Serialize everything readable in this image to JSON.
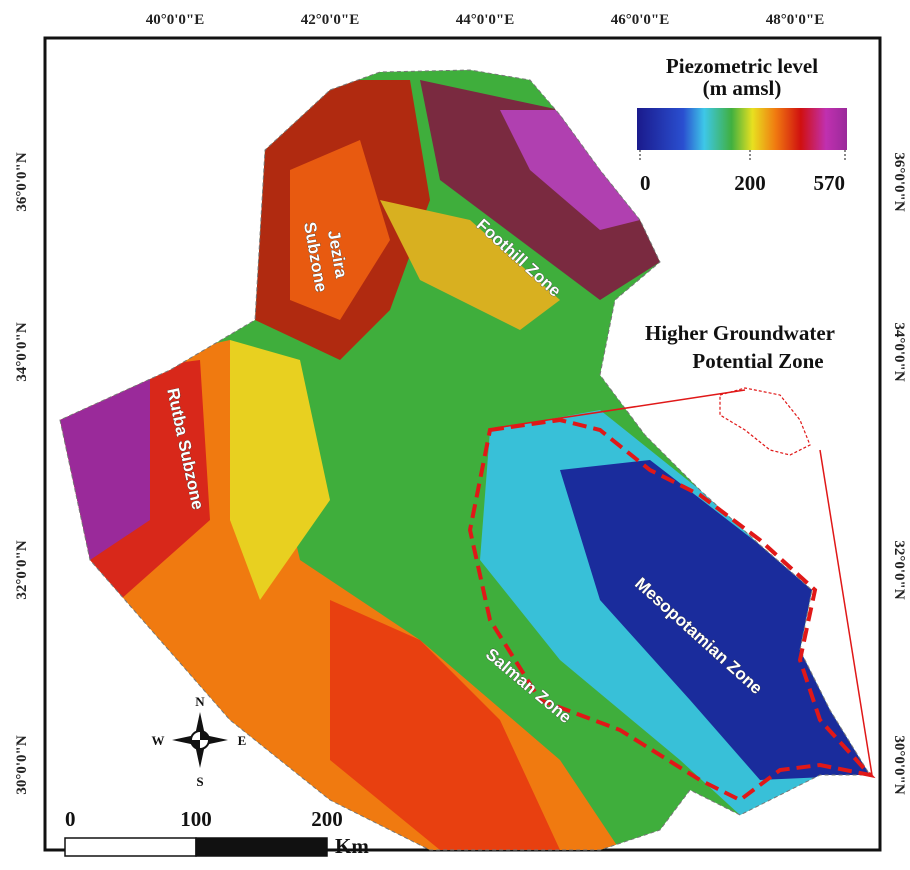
{
  "map": {
    "longitude_labels": [
      "40°0'0\"E",
      "42°0'0\"E",
      "44°0'0\"E",
      "46°0'0\"E",
      "48°0'0\"E"
    ],
    "latitude_labels": [
      "36°0'0\"N",
      "34°0'0\"N",
      "32°0'0\"N",
      "30°0'0\"N"
    ],
    "legend": {
      "title": "Piezometric level",
      "subtitle": "(m amsl)",
      "ticks": [
        0,
        200,
        570
      ]
    },
    "zones": {
      "jezira": [
        "Jezira",
        "Subzone"
      ],
      "foothill": "Foothill Zone",
      "rutba": "Rutba Subzone",
      "salman": "Salman Zone",
      "mesopotamian": "Mesopotamian Zone"
    },
    "annotation": [
      "Higher Groundwater",
      "Potential Zone"
    ],
    "compass": {
      "north": "N",
      "south": "S",
      "east": "E",
      "west": "W"
    },
    "scale_bar": {
      "ticks": [
        0,
        100,
        200
      ],
      "unit": "Km"
    }
  }
}
